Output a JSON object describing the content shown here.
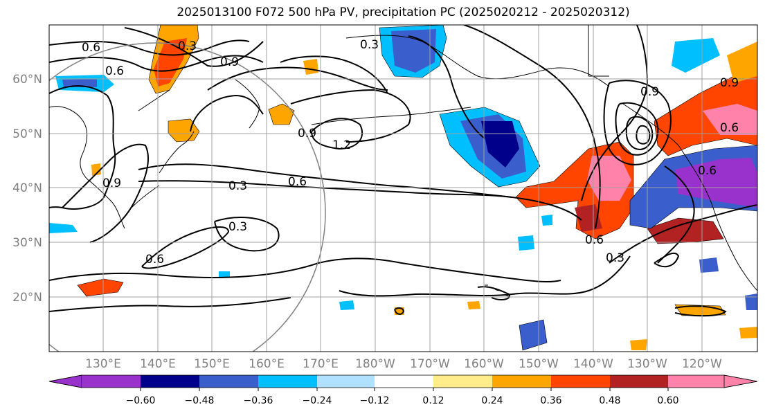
{
  "title": "2025013100 F072 500 hPa PV, precipitation PC (2025020212 - 2025020312)",
  "lat_labels": [
    "60°N",
    "50°N",
    "40°N",
    "30°N",
    "20°N"
  ],
  "lon_labels": [
    "130°E",
    "140°E",
    "150°E",
    "160°E",
    "170°E",
    "180°W",
    "170°W",
    "160°W",
    "150°W",
    "140°W",
    "130°W",
    "120°W"
  ],
  "colorbar": {
    "ticks": [
      "−0.60",
      "−0.48",
      "−0.36",
      "−0.24",
      "−0.12",
      "0.12",
      "0.24",
      "0.36",
      "0.48",
      "0.60"
    ],
    "colors": [
      "#9932cc",
      "#00008b",
      "#3a5fcd",
      "#00bfff",
      "#b0e2ff",
      "#ffffff",
      "#ffec8b",
      "#ffa500",
      "#ff4500",
      "#b22222",
      "#ff82ab"
    ]
  },
  "contour_labels": [
    "0.6",
    "0.6",
    "0.3",
    "0.9",
    "0.9",
    "1.2",
    "0.3",
    "0.6",
    "0.3",
    "0.6",
    "0.9",
    "0.3",
    "0.6",
    "0.6",
    "0.3",
    "0.9",
    "0.6",
    "0.9"
  ]
}
